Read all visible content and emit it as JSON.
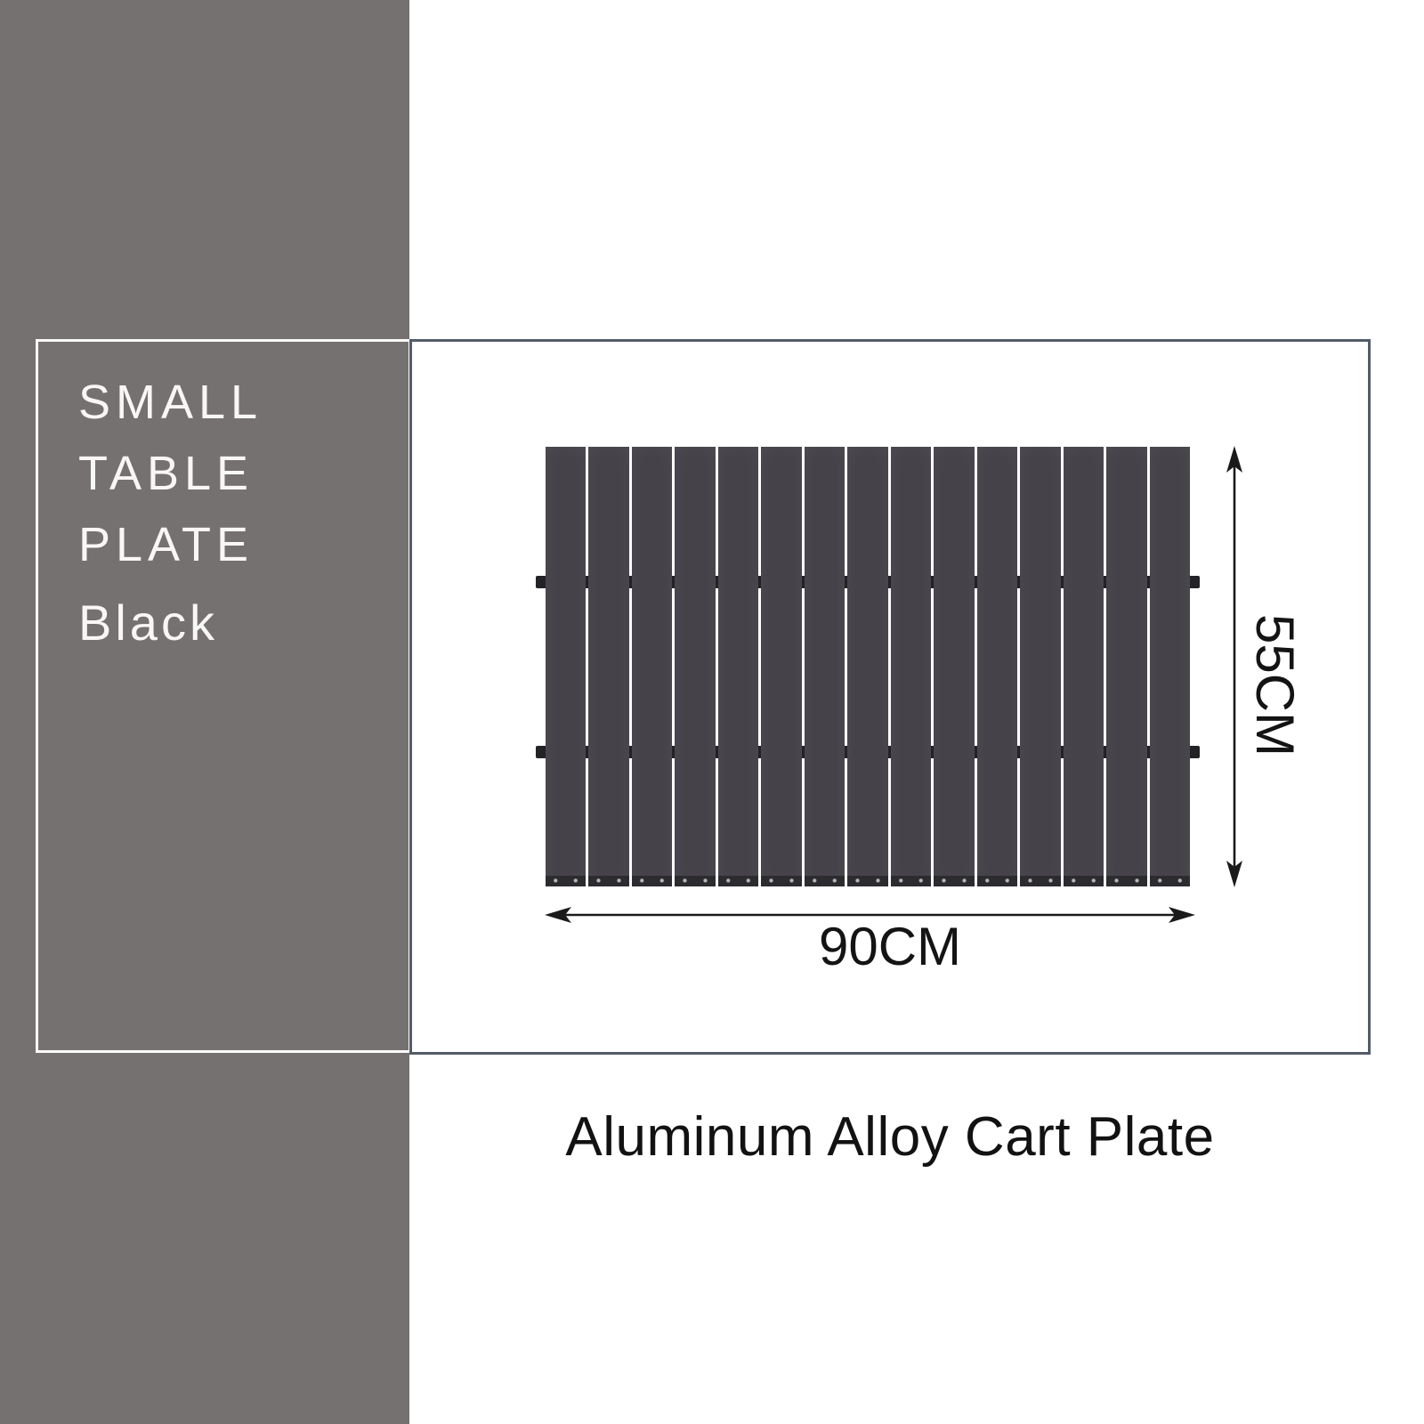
{
  "sidebar": {
    "bg_color": "#757170",
    "lines": [
      "SMALL",
      "TABLE",
      "PLATE"
    ],
    "variant": "Black",
    "text_color": "#f8f7f5"
  },
  "diagram": {
    "height_label": "55CM",
    "width_label": "90CM",
    "slat_count": 15,
    "plate_color": "#454349",
    "crossbar_color": "#232226",
    "frame_border_color": "#535b68",
    "arrow_color": "#1a1a1a"
  },
  "caption": "Aluminum Alloy Cart Plate"
}
